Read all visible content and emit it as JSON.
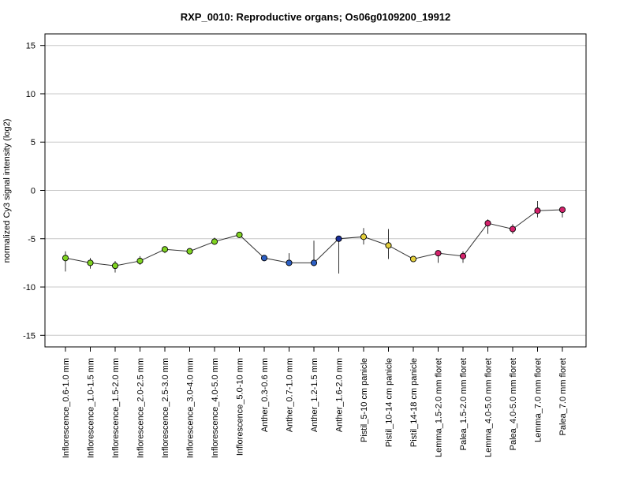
{
  "chart_data": {
    "type": "line",
    "title": "RXP_0010: Reproductive organs; Os06g0109200_19912",
    "xlabel": "",
    "ylabel": "normalized Cy3 signal intensity (log2)",
    "ylim": [
      -16.2,
      16.2
    ],
    "yticks": [
      -15,
      -10,
      -5,
      0,
      5,
      10,
      15
    ],
    "grid": "horizontal",
    "legend": "none",
    "series": [
      {
        "points": [
          {
            "label": "Inflorescence_0.6-1.0 mm",
            "value": -7.0,
            "err_low": -8.4,
            "err_high": -6.3,
            "color": "#7fd321"
          },
          {
            "label": "Inflorescence_1.0-1.5 mm",
            "value": -7.5,
            "err_low": -8.1,
            "err_high": -7.0,
            "color": "#7fd321"
          },
          {
            "label": "Inflorescence_1.5-2.0 mm",
            "value": -7.8,
            "err_low": -8.5,
            "err_high": -7.3,
            "color": "#7fd321"
          },
          {
            "label": "Inflorescence_2.0-2.5 mm",
            "value": -7.3,
            "err_low": -7.7,
            "err_high": -6.8,
            "color": "#7fd321"
          },
          {
            "label": "Inflorescence_2.5-3.0 mm",
            "value": -6.1,
            "err_low": -6.5,
            "err_high": -5.8,
            "color": "#7fd321"
          },
          {
            "label": "Inflorescence_3.0-4.0 mm",
            "value": -6.3,
            "err_low": -6.5,
            "err_high": -6.1,
            "color": "#7fd321"
          },
          {
            "label": "Inflorescence_4.0-5.0 mm",
            "value": -5.3,
            "err_low": -5.6,
            "err_high": -4.9,
            "color": "#7fd321"
          },
          {
            "label": "Inflorescence_5.0-10 mm",
            "value": -4.6,
            "err_low": -4.8,
            "err_high": -4.3,
            "color": "#7fd321"
          },
          {
            "label": "Anther_0.3-0.6 mm",
            "value": -7.0,
            "err_low": -7.2,
            "err_high": -6.7,
            "color": "#2c5fc4"
          },
          {
            "label": "Anther_0.7-1.0 mm",
            "value": -7.5,
            "err_low": -7.6,
            "err_high": -6.5,
            "color": "#2c5fc4"
          },
          {
            "label": "Anther_1.2-1.5 mm",
            "value": -7.5,
            "err_low": -7.6,
            "err_high": -5.2,
            "color": "#2c5fc4"
          },
          {
            "label": "Anther_1.6-2.0 mm",
            "value": -5.0,
            "err_low": -8.6,
            "err_high": -4.9,
            "color": "#1a2f9a"
          },
          {
            "label": "Pistil_5-10 cm panicle",
            "value": -4.8,
            "err_low": -5.6,
            "err_high": -3.9,
            "color": "#e3cf3b"
          },
          {
            "label": "Pistil_10-14 cm panicle",
            "value": -5.7,
            "err_low": -7.1,
            "err_high": -4.0,
            "color": "#e3cf3b"
          },
          {
            "label": "Pistil_14-18 cm panicle",
            "value": -7.1,
            "err_low": -7.3,
            "err_high": -6.8,
            "color": "#e3cf3b"
          },
          {
            "label": "Lemma_1.5-2.0 mm floret",
            "value": -6.5,
            "err_low": -7.5,
            "err_high": -6.4,
            "color": "#d4236c"
          },
          {
            "label": "Palea_1.5-2.0 mm floret",
            "value": -6.8,
            "err_low": -7.5,
            "err_high": -6.3,
            "color": "#d4236c"
          },
          {
            "label": "Lemma_4.0-5.0 mm floret",
            "value": -3.4,
            "err_low": -4.5,
            "err_high": -3.0,
            "color": "#d4236c"
          },
          {
            "label": "Palea_4.0-5.0 mm floret",
            "value": -4.0,
            "err_low": -4.5,
            "err_high": -3.5,
            "color": "#d4236c"
          },
          {
            "label": "Lemma_7.0 mm floret",
            "value": -2.1,
            "err_low": -2.8,
            "err_high": -1.1,
            "color": "#d4236c"
          },
          {
            "label": "Palea_7.0 mm floret",
            "value": -2.0,
            "err_low": -2.8,
            "err_high": -1.9,
            "color": "#d4236c"
          }
        ]
      }
    ]
  }
}
